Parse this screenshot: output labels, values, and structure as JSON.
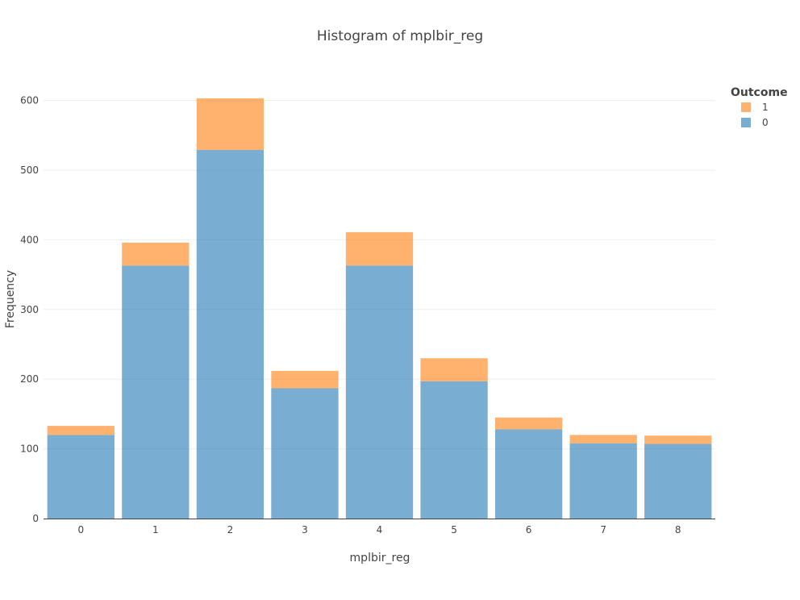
{
  "chart_data": {
    "type": "bar",
    "barmode": "stacked",
    "title": "Histogram of mplbir_reg",
    "xlabel": "mplbir_reg",
    "ylabel": "Frequency",
    "categories": [
      "0",
      "1",
      "2",
      "3",
      "4",
      "5",
      "6",
      "7",
      "8"
    ],
    "ylim": [
      0,
      640
    ],
    "yticks": [
      0,
      100,
      200,
      300,
      400,
      500,
      600
    ],
    "grid": "horizontal",
    "legend": {
      "title": "Outcome",
      "placement": "top-right"
    },
    "series": [
      {
        "name": "0",
        "color": "#1f77b4",
        "values": [
          120,
          363,
          529,
          187,
          363,
          197,
          128,
          108,
          107
        ]
      },
      {
        "name": "1",
        "color": "#ff7f0e",
        "values": [
          13,
          33,
          74,
          25,
          48,
          33,
          17,
          12,
          12
        ]
      }
    ]
  }
}
